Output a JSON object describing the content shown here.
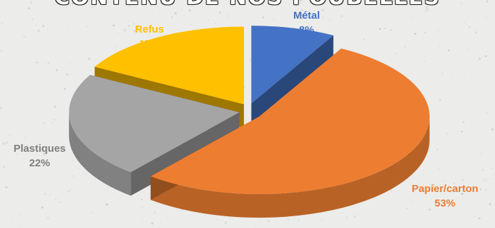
{
  "chart_data": {
    "type": "pie",
    "title": "CONTENU DE NOS POUBELLES",
    "three_d": true,
    "exploded": true,
    "categories": [
      "Métal",
      "Papier/carton",
      "Plastiques",
      "Refus"
    ],
    "values": [
      8,
      53,
      22,
      17
    ],
    "value_labels": [
      "8%",
      "53%",
      "22%",
      "17%"
    ],
    "colors": [
      "#4472c4",
      "#ed7d31",
      "#a5a5a5",
      "#ffc000"
    ],
    "label_colors": [
      "#4472c4",
      "#ed7d31",
      "#7f7f7f",
      "#ffc000"
    ],
    "legend": "none",
    "data_labels": "outside"
  }
}
